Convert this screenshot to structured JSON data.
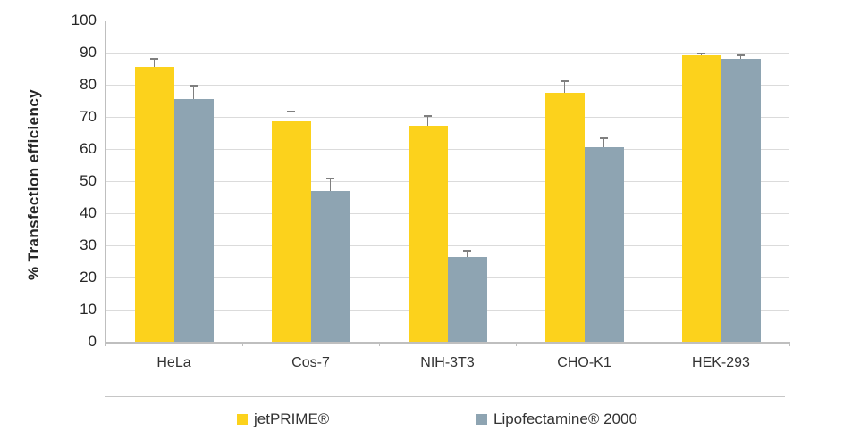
{
  "chart_data": {
    "type": "bar",
    "title": "",
    "xlabel": "",
    "ylabel": "% Transfection efficiency",
    "categories": [
      "HeLa",
      "Cos-7",
      "NIH-3T3",
      "CHO-K1",
      "HEK-293"
    ],
    "series": [
      {
        "name": "jetPRIME®",
        "color": "#FCD21C",
        "values": [
          85.5,
          68.7,
          67.3,
          77.4,
          89.2
        ],
        "errors_plus": [
          2.6,
          3.0,
          2.9,
          3.6,
          0.5
        ]
      },
      {
        "name": "Lipofectamine® 2000",
        "color": "#8EA4B2",
        "values": [
          75.5,
          47.0,
          26.5,
          60.6,
          88.0
        ],
        "errors_plus": [
          4.3,
          3.8,
          1.8,
          2.7,
          1.3
        ]
      }
    ],
    "ylim": [
      0,
      100
    ],
    "yticks": [
      0,
      10,
      20,
      30,
      40,
      50,
      60,
      70,
      80,
      90,
      100
    ],
    "grid": true,
    "legend_position": "bottom"
  },
  "colors": {
    "gridline": "#dbdbdb",
    "axis": "#bfbfbf",
    "error_bar": "#7f7f7f",
    "text": "#333333",
    "background": "#ffffff"
  }
}
